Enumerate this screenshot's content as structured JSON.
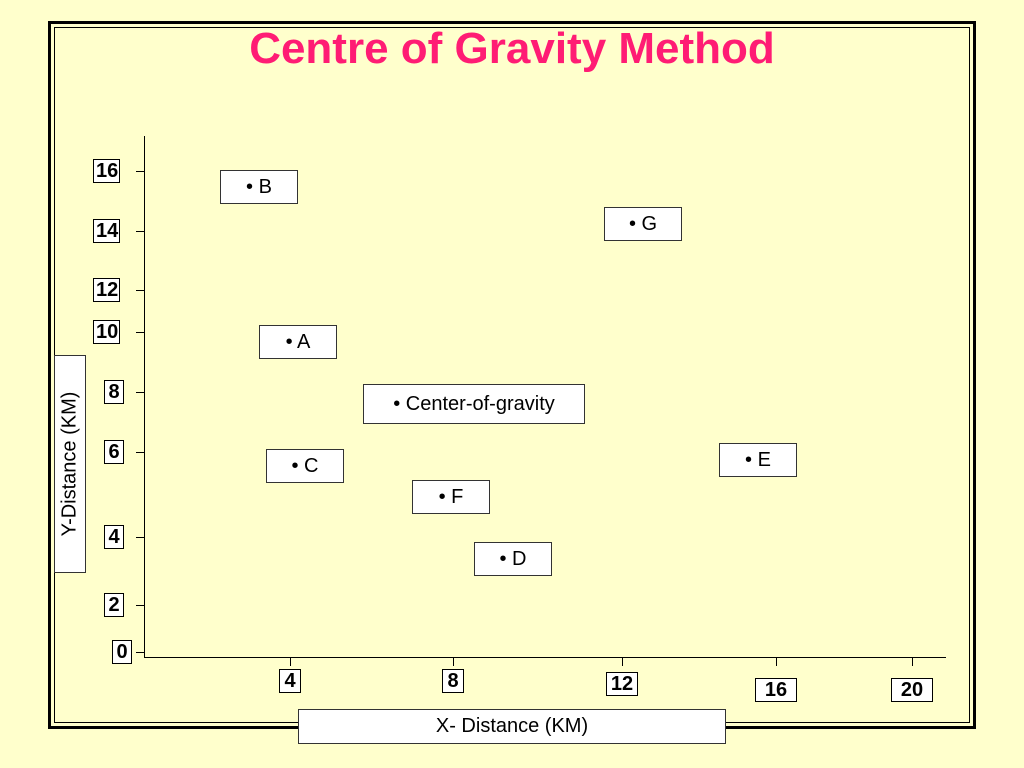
{
  "chart_data": {
    "type": "scatter",
    "title": "Centre of Gravity Method",
    "xlabel": "X- Distance (KM)",
    "ylabel": "Y-Distance (KM)",
    "xlim": [
      0,
      20
    ],
    "ylim": [
      0,
      16
    ],
    "x_ticks": [
      "4",
      "8",
      "12",
      "16",
      "20"
    ],
    "y_ticks": [
      "0",
      "2",
      "4",
      "6",
      "8",
      "10",
      "12",
      "14",
      "16"
    ],
    "points": [
      {
        "label": "• B",
        "x": 3,
        "y": 15
      },
      {
        "label": "• G",
        "x": 13,
        "y": 13.8
      },
      {
        "label": "• A",
        "x": 4,
        "y": 10
      },
      {
        "label": "• Center-of-gravity",
        "x": 8.6,
        "y": 8
      },
      {
        "label": "• E",
        "x": 16,
        "y": 6.2
      },
      {
        "label": "• C",
        "x": 4.2,
        "y": 6
      },
      {
        "label": "• F",
        "x": 8,
        "y": 5
      },
      {
        "label": "• D",
        "x": 9.6,
        "y": 3
      }
    ]
  }
}
